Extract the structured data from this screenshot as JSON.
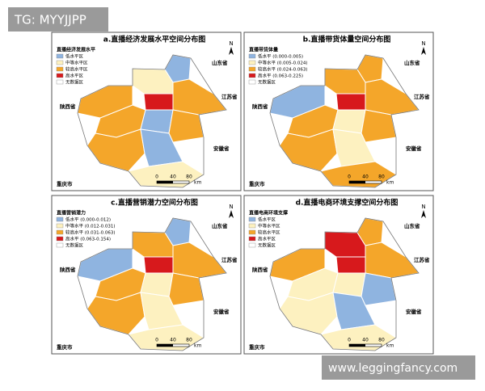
{
  "watermarks": {
    "top": "TG: MYYJJPP",
    "bottom": "www.leggingfancy.com"
  },
  "panels": [
    {
      "title": "a.直播经济发展水平空间分布图",
      "legend": {
        "title": "直播经济发展水平",
        "items": [
          {
            "label": "低水平区",
            "color": "#8fb4e0"
          },
          {
            "label": "中等水平区",
            "color": "#fdf1c0"
          },
          {
            "label": "较高水平区",
            "color": "#f4a62a"
          },
          {
            "label": "高水平区",
            "color": "#d7191c"
          },
          {
            "label": "无数据区",
            "color": "#ffffff"
          }
        ]
      }
    },
    {
      "title": "b.直播带货体量空间分布图",
      "legend": {
        "title": "直播带货体量",
        "items": [
          {
            "label": "低水平 (0.000-0.005)",
            "color": "#8fb4e0"
          },
          {
            "label": "中等水平 (0.005-0.024)",
            "color": "#fdf1c0"
          },
          {
            "label": "较高水平 (0.024-0.063)",
            "color": "#f4a62a"
          },
          {
            "label": "高水平 (0.063-0.225)",
            "color": "#d7191c"
          },
          {
            "label": "无数据区",
            "color": "#ffffff"
          }
        ]
      }
    },
    {
      "title": "c.直播营销潜力空间分布图",
      "legend": {
        "title": "直播营销潜力",
        "items": [
          {
            "label": "低水平 (0.000-0.012)",
            "color": "#8fb4e0"
          },
          {
            "label": "中等水平 (0.012-0.031)",
            "color": "#fdf1c0"
          },
          {
            "label": "较高水平 (0.031-0.063)",
            "color": "#f4a62a"
          },
          {
            "label": "高水平 (0.063-0.154)",
            "color": "#d7191c"
          },
          {
            "label": "无数据区",
            "color": "#ffffff"
          }
        ]
      }
    },
    {
      "title": "d.直播电商环境支撑空间分布图",
      "legend": {
        "title": "直播电商环境支撑",
        "items": [
          {
            "label": "低水平区",
            "color": "#8fb4e0"
          },
          {
            "label": "中等水平区",
            "color": "#fdf1c0"
          },
          {
            "label": "较高水平区",
            "color": "#f4a62a"
          },
          {
            "label": "高水平区",
            "color": "#d7191c"
          },
          {
            "label": "无数据区",
            "color": "#ffffff"
          }
        ]
      }
    }
  ],
  "neighbors": {
    "shandong": "山东省",
    "jiangsu": "江苏省",
    "shaanxi": "陕西省",
    "anhui": "安徽省",
    "chongqing": "重庆市"
  },
  "scale": {
    "ticks": [
      "0",
      "40",
      "80"
    ],
    "unit": "km"
  },
  "north": "N"
}
